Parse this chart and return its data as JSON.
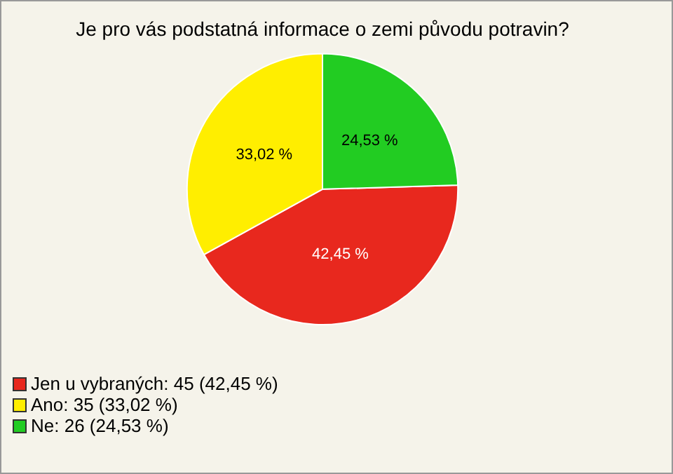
{
  "chart_data": {
    "type": "pie",
    "title": "Je pro vás podstatná informace o zemi původu potravin?",
    "categories": [
      "Jen u vybraných: 45 (42,45 %)",
      "Ano: 35 (33,02 %)",
      "Ne: 26 (24,53 %)"
    ],
    "values": [
      42.45,
      33.02,
      24.53
    ],
    "colors": [
      "#e8281e",
      "#ffee00",
      "#22cc22"
    ],
    "value_labels": [
      "42,45 %",
      "33,02 %",
      "24,53 %"
    ],
    "legend": "bottom left"
  }
}
